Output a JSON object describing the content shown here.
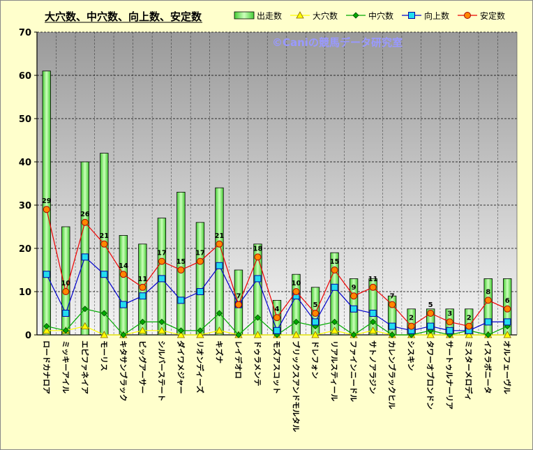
{
  "chart_data": {
    "type": "bar",
    "title": "大穴数、中穴数、向上数、安定数",
    "watermark": "©Caniの競馬データ研究室",
    "ylim": [
      0,
      70
    ],
    "yticks": [
      0,
      10,
      20,
      30,
      40,
      50,
      60,
      70
    ],
    "grid": true,
    "legend_position": "top",
    "categories": [
      "ロードカナロア",
      "ミッキーアイル",
      "エピファネイア",
      "モーリス",
      "キタサンブラック",
      "ビッグアーサー",
      "シルバーステート",
      "ダイワメジャー",
      "リオンディーズ",
      "キズナ",
      "レイデオロ",
      "ドゥラメンテ",
      "モズアスコット",
      "ブリックスアンドモルタル",
      "ドレフォン",
      "リアルスティール",
      "ファインニードル",
      "サトノアラジン",
      "カレンブラックヒル",
      "シスキン",
      "タワーオブロンドン",
      "サートゥルナーリア",
      "ミスターメロディ",
      "イスラボニータ",
      "オルフェーヴル"
    ],
    "series": [
      {
        "name": "出走数",
        "type": "bar",
        "color": "#66DD55",
        "values": [
          61,
          25,
          40,
          42,
          23,
          21,
          27,
          33,
          26,
          34,
          15,
          21,
          8,
          14,
          11,
          19,
          13,
          13,
          9,
          6,
          6,
          6,
          6,
          13,
          13
        ]
      },
      {
        "name": "大穴数",
        "type": "line",
        "color": "#FFFF00",
        "values": [
          1,
          1,
          2,
          0,
          0,
          1,
          1,
          0,
          0,
          1,
          0,
          0,
          0,
          0,
          0,
          1,
          0,
          1,
          0,
          0,
          0,
          0,
          0,
          0,
          0
        ]
      },
      {
        "name": "中穴数",
        "type": "line",
        "color": "#00AA00",
        "values": [
          2,
          1,
          6,
          5,
          0,
          3,
          3,
          1,
          1,
          5,
          0,
          4,
          0,
          3,
          2,
          3,
          0,
          3,
          0,
          0,
          1,
          0,
          1,
          0,
          2
        ]
      },
      {
        "name": "向上数",
        "type": "line",
        "color": "#0000CC",
        "values": [
          14,
          5,
          18,
          14,
          7,
          9,
          13,
          8,
          10,
          16,
          7,
          13,
          1,
          9,
          3,
          11,
          6,
          5,
          2,
          1,
          2,
          1,
          1,
          3,
          3
        ]
      },
      {
        "name": "安定数",
        "type": "line",
        "color": "#EE0000",
        "values": [
          29,
          10,
          26,
          21,
          14,
          11,
          17,
          15,
          17,
          21,
          7,
          18,
          4,
          10,
          5,
          15,
          9,
          11,
          7,
          2,
          5,
          3,
          2,
          8,
          6
        ],
        "labels": true
      }
    ]
  },
  "legend_marks": {
    "出走数": "bar",
    "大穴数": "triangle",
    "中穴数": "diamond",
    "向上数": "square",
    "安定数": "circle"
  }
}
